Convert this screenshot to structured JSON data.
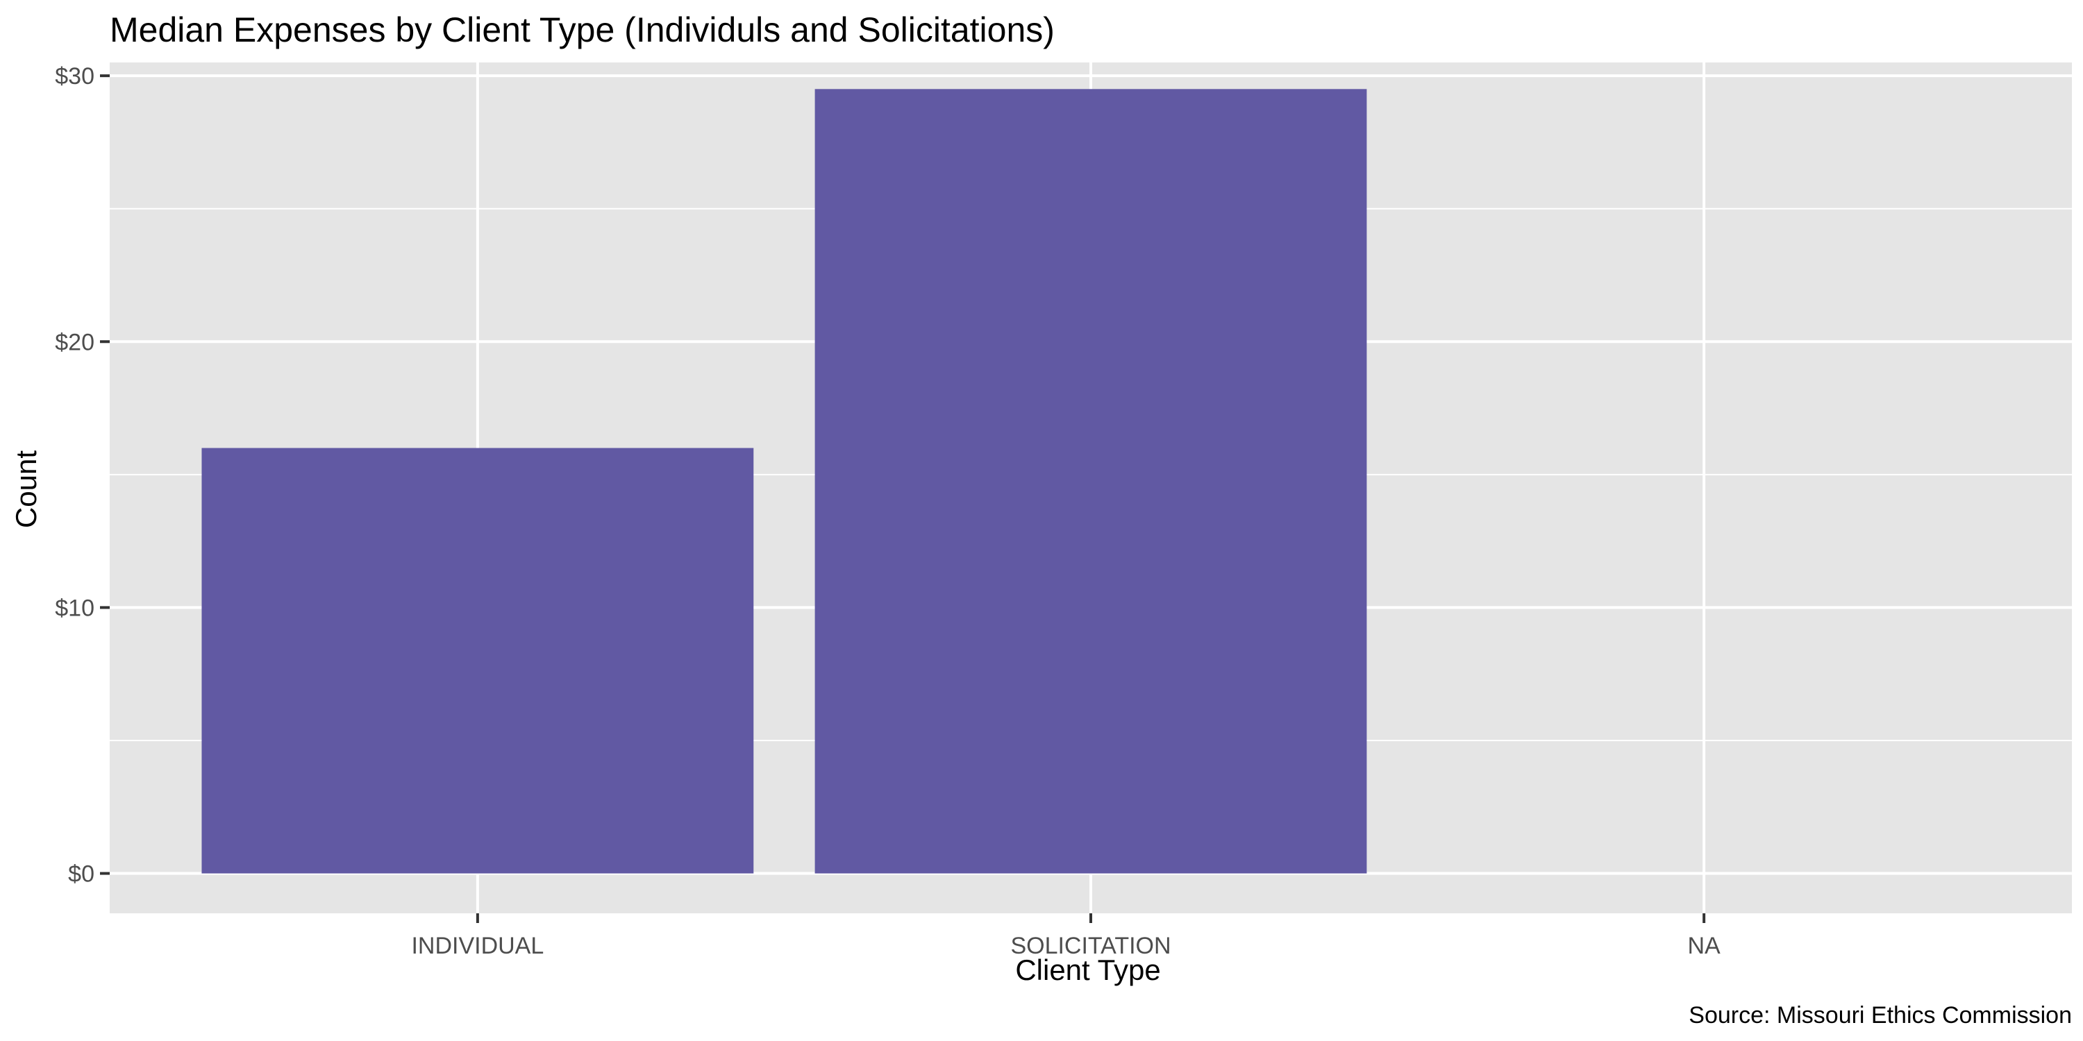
{
  "chart_data": {
    "type": "bar",
    "title": "Median Expenses by Client Type (Individuls and Solicitations)",
    "xlabel": "Client Type",
    "ylabel": "Count",
    "caption": "Source: Missouri Ethics Commission",
    "categories": [
      "INDIVIDUAL",
      "SOLICITATION",
      "NA"
    ],
    "values": [
      16,
      29.5,
      null
    ],
    "ylim": [
      -1.5,
      30.5
    ],
    "yticks": [
      0,
      10,
      20,
      30
    ],
    "ytick_labels": [
      "$0",
      "$10",
      "$20",
      "$30"
    ],
    "grid": true,
    "legend": "none",
    "colors": {
      "bar": "#6159a3",
      "panel": "#e5e5e5",
      "grid": "#ffffff"
    }
  }
}
